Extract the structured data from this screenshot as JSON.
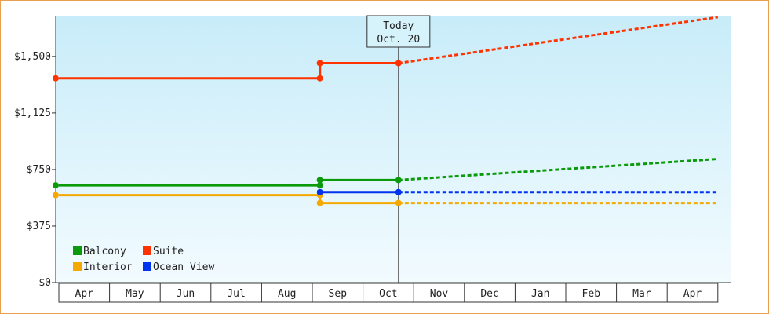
{
  "chart_data": {
    "type": "line",
    "title": "",
    "xlabel": "",
    "ylabel": "",
    "y_ticks": [
      {
        "value": 0,
        "label": "$0"
      },
      {
        "value": 375,
        "label": "$375"
      },
      {
        "value": 750,
        "label": "$750"
      },
      {
        "value": 1125,
        "label": "$1,125"
      },
      {
        "value": 1500,
        "label": "$1,500"
      }
    ],
    "ylim": [
      0,
      1770
    ],
    "x_months": [
      "Apr",
      "May",
      "Jun",
      "Jul",
      "Aug",
      "Sep",
      "Oct",
      "Nov",
      "Dec",
      "Jan",
      "Feb",
      "Mar",
      "Apr"
    ],
    "grid": false,
    "today": {
      "line1": "Today",
      "line2": "Oct. 20",
      "x": 6.2
    },
    "legend": {
      "placement": "bottom-left"
    },
    "series": [
      {
        "name": "Suite",
        "color": "#ff3300",
        "legend_order": 1,
        "actual": [
          [
            -0.5,
            1355
          ],
          [
            4.65,
            1355
          ],
          [
            4.65,
            1455
          ],
          [
            6.2,
            1455
          ]
        ],
        "forecast": [
          [
            6.2,
            1455
          ],
          [
            12.5,
            1760
          ]
        ]
      },
      {
        "name": "Balcony",
        "color": "#0a9a0a",
        "legend_order": 0,
        "actual": [
          [
            -0.5,
            645
          ],
          [
            4.65,
            645
          ],
          [
            4.65,
            680
          ],
          [
            6.2,
            680
          ]
        ],
        "forecast": [
          [
            6.2,
            680
          ],
          [
            12.5,
            820
          ]
        ]
      },
      {
        "name": "Ocean View",
        "color": "#0033ee",
        "legend_order": 3,
        "actual": [
          [
            4.65,
            600
          ],
          [
            6.2,
            600
          ]
        ],
        "forecast": [
          [
            6.2,
            600
          ],
          [
            12.5,
            600
          ]
        ]
      },
      {
        "name": "Interior",
        "color": "#f5a800",
        "legend_order": 2,
        "actual": [
          [
            -0.5,
            580
          ],
          [
            4.65,
            580
          ],
          [
            4.65,
            528
          ],
          [
            6.2,
            528
          ]
        ],
        "forecast": [
          [
            6.2,
            528
          ],
          [
            12.5,
            528
          ]
        ]
      }
    ]
  }
}
